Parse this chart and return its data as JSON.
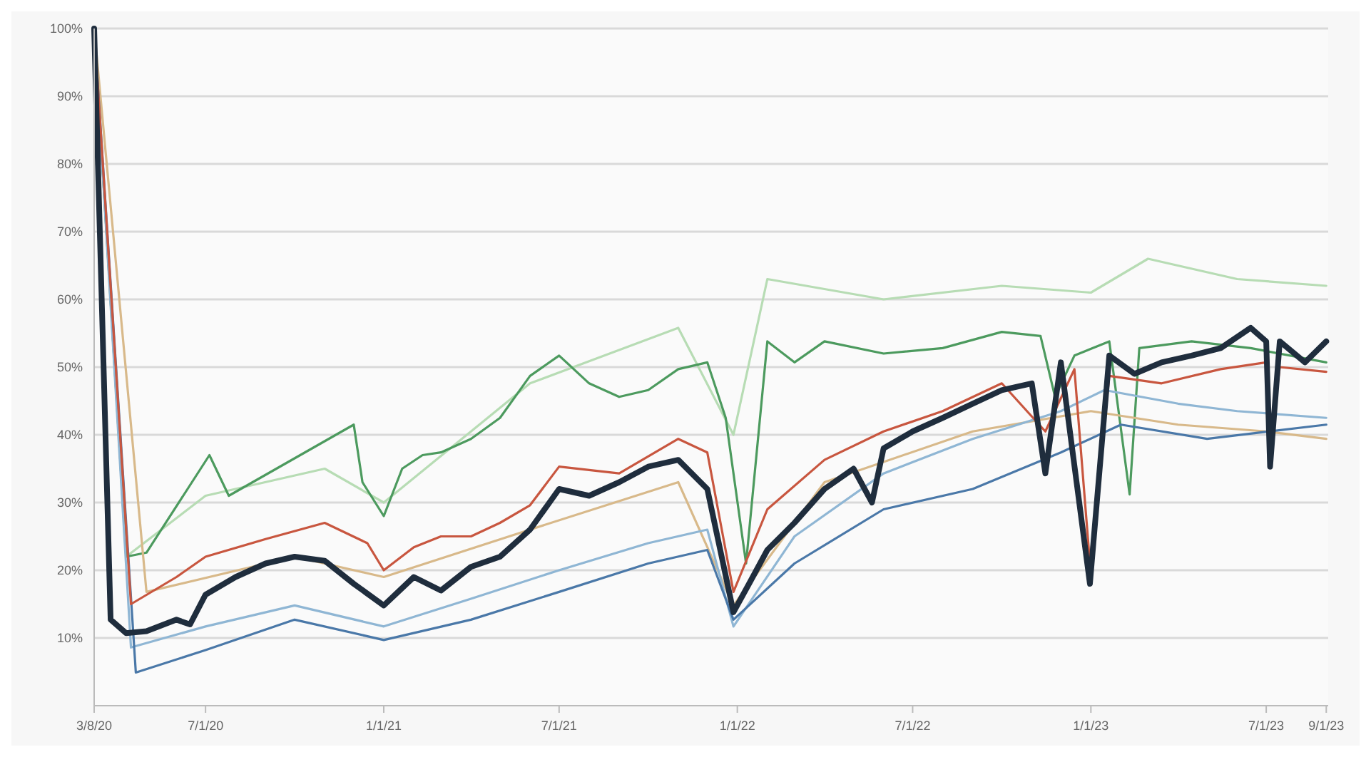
{
  "chart_data": {
    "type": "line",
    "xlim": [
      "2020-03-08",
      "2023-09-03"
    ],
    "xticks": [
      {
        "value": "2020-03-08",
        "label": "3/8/20"
      },
      {
        "value": "2020-07-01",
        "label": "7/1/20"
      },
      {
        "value": "2021-01-01",
        "label": "1/1/21"
      },
      {
        "value": "2021-07-01",
        "label": "7/1/21"
      },
      {
        "value": "2022-01-01",
        "label": "1/1/22"
      },
      {
        "value": "2022-07-01",
        "label": "7/1/22"
      },
      {
        "value": "2023-01-01",
        "label": "1/1/23"
      },
      {
        "value": "2023-07-01",
        "label": "7/1/23"
      },
      {
        "value": "2023-09-01",
        "label": "9/1/23"
      }
    ],
    "ylim": [
      0,
      100
    ],
    "yticks": [
      {
        "value": 10,
        "label": "10%"
      },
      {
        "value": 20,
        "label": "20%"
      },
      {
        "value": 30,
        "label": "30%"
      },
      {
        "value": 40,
        "label": "40%"
      },
      {
        "value": 50,
        "label": "50%"
      },
      {
        "value": 60,
        "label": "60%"
      },
      {
        "value": 70,
        "label": "70%"
      },
      {
        "value": 80,
        "label": "80%"
      },
      {
        "value": 90,
        "label": "90%"
      },
      {
        "value": 100,
        "label": "100%"
      }
    ],
    "grid": "y",
    "marker": "none",
    "line_style": "solid",
    "series": [
      {
        "color": "#b7dcb4",
        "x": [
          "2020-03-08",
          "2020-04-10",
          "2020-07-01",
          "2020-11-01",
          "2021-01-01",
          "2021-06-01",
          "2021-11-01",
          "2021-12-28",
          "2022-02-01",
          "2022-06-01",
          "2022-10-01",
          "2023-01-01",
          "2023-03-01",
          "2023-06-01",
          "2023-09-01"
        ],
        "values": [
          100,
          22,
          31,
          35,
          30,
          47.6,
          55.8,
          40,
          63,
          60,
          62,
          61,
          66,
          63,
          62
        ]
      },
      {
        "color": "#4c9a5e",
        "x": [
          "2020-03-08",
          "2020-04-10",
          "2020-05-01",
          "2020-07-05",
          "2020-07-25",
          "2020-12-01",
          "2020-12-10",
          "2021-01-01",
          "2021-01-20",
          "2021-02-10",
          "2021-03-01",
          "2021-04-01",
          "2021-05-01",
          "2021-06-01",
          "2021-07-01",
          "2021-08-01",
          "2021-09-01",
          "2021-10-01",
          "2021-11-01",
          "2021-12-01",
          "2021-12-20",
          "2022-01-10",
          "2022-02-01",
          "2022-03-01",
          "2022-04-01",
          "2022-06-01",
          "2022-08-01",
          "2022-10-01",
          "2022-11-10",
          "2022-11-25",
          "2022-12-15",
          "2023-01-20",
          "2023-02-10",
          "2023-02-20",
          "2023-04-15",
          "2023-06-15",
          "2023-09-01"
        ],
        "values": [
          100,
          22,
          22.6,
          37,
          31,
          41.5,
          33,
          28,
          35,
          37,
          37.4,
          39.4,
          42.5,
          48.7,
          51.7,
          47.6,
          45.6,
          46.6,
          49.7,
          50.7,
          42.5,
          21,
          53.8,
          50.7,
          53.8,
          52,
          52.8,
          55.2,
          54.6,
          45.6,
          51.7,
          53.8,
          31.2,
          52.8,
          53.8,
          52.8,
          50.7
        ]
      },
      {
        "color": "#d8b98a",
        "x": [
          "2020-03-08",
          "2020-05-01",
          "2020-10-01",
          "2021-01-01",
          "2021-06-01",
          "2021-11-01",
          "2021-12-28",
          "2022-04-01",
          "2022-09-01",
          "2023-01-01",
          "2023-04-01",
          "2023-07-01",
          "2023-09-01"
        ],
        "values": [
          100,
          16.8,
          22,
          19,
          26,
          33,
          14.8,
          33,
          40.5,
          43.5,
          41.5,
          40.5,
          39.4
        ]
      },
      {
        "color": "#8fb6d4",
        "x": [
          "2020-03-08",
          "2020-04-15",
          "2020-07-01",
          "2020-10-01",
          "2021-01-01",
          "2021-04-01",
          "2021-07-01",
          "2021-10-01",
          "2021-12-01",
          "2021-12-28",
          "2022-03-01",
          "2022-06-01",
          "2022-09-01",
          "2022-12-01",
          "2023-01-15",
          "2023-04-01",
          "2023-06-01",
          "2023-09-01"
        ],
        "values": [
          100,
          8.6,
          11.7,
          14.8,
          11.7,
          15.8,
          20,
          24,
          26,
          11.7,
          25,
          34.3,
          39.4,
          43.5,
          46.6,
          44.6,
          43.5,
          42.5
        ]
      },
      {
        "color": "#4a78a8",
        "x": [
          "2020-03-08",
          "2020-04-20",
          "2020-07-01",
          "2020-10-01",
          "2021-01-01",
          "2021-04-01",
          "2021-07-01",
          "2021-10-01",
          "2021-12-01",
          "2021-12-28",
          "2022-03-01",
          "2022-06-01",
          "2022-09-01",
          "2022-12-01",
          "2023-02-01",
          "2023-05-01",
          "2023-09-01"
        ],
        "values": [
          100,
          4.9,
          8.2,
          12.7,
          9.7,
          12.7,
          16.8,
          21,
          23,
          12.7,
          21,
          29,
          32,
          37.4,
          41.5,
          39.4,
          41.5
        ]
      },
      {
        "color": "#c8563f",
        "x": [
          "2020-03-08",
          "2020-04-15",
          "2020-06-01",
          "2020-07-01",
          "2020-09-01",
          "2020-11-01",
          "2020-12-15",
          "2021-01-01",
          "2021-02-01",
          "2021-03-01",
          "2021-04-01",
          "2021-05-01",
          "2021-06-01",
          "2021-07-01",
          "2021-09-01",
          "2021-11-01",
          "2021-12-01",
          "2021-12-28",
          "2022-02-01",
          "2022-04-01",
          "2022-06-01",
          "2022-08-01",
          "2022-10-01",
          "2022-11-15",
          "2022-12-15",
          "2022-12-31",
          "2023-01-20",
          "2023-03-15",
          "2023-05-15",
          "2023-07-01",
          "2023-07-05",
          "2023-07-15",
          "2023-09-01"
        ],
        "values": [
          100,
          15,
          19,
          22,
          24.6,
          27,
          24,
          20,
          23.4,
          25,
          25,
          27,
          29.6,
          35.3,
          34.3,
          39.4,
          37.4,
          16.8,
          29,
          36.3,
          40.5,
          43.5,
          47.6,
          40.5,
          49.7,
          21,
          48.7,
          47.6,
          49.7,
          50.7,
          38.4,
          50,
          49.3
        ]
      },
      {
        "color": "#1f2d3d",
        "x": [
          "2020-03-08",
          "2020-03-25",
          "2020-04-10",
          "2020-05-01",
          "2020-06-01",
          "2020-06-15",
          "2020-07-01",
          "2020-08-01",
          "2020-09-01",
          "2020-10-01",
          "2020-11-01",
          "2020-12-01",
          "2021-01-01",
          "2021-02-01",
          "2021-03-01",
          "2021-04-01",
          "2021-05-01",
          "2021-06-01",
          "2021-07-01",
          "2021-08-01",
          "2021-09-01",
          "2021-10-01",
          "2021-11-01",
          "2021-12-01",
          "2021-12-28",
          "2022-01-15",
          "2022-02-01",
          "2022-03-01",
          "2022-04-01",
          "2022-05-01",
          "2022-05-20",
          "2022-06-01",
          "2022-07-01",
          "2022-08-01",
          "2022-09-01",
          "2022-10-01",
          "2022-11-01",
          "2022-11-15",
          "2022-12-01",
          "2022-12-31",
          "2023-01-20",
          "2023-02-15",
          "2023-03-15",
          "2023-04-15",
          "2023-05-15",
          "2023-06-15",
          "2023-07-01",
          "2023-07-05",
          "2023-07-15",
          "2023-08-10",
          "2023-09-01"
        ],
        "values": [
          100,
          12.7,
          10.7,
          11,
          12.7,
          12,
          16.4,
          19,
          21,
          22,
          21.4,
          18,
          14.8,
          19,
          17,
          20.5,
          22,
          26,
          32,
          31,
          33,
          35.3,
          36.3,
          32,
          13.8,
          18.5,
          23,
          27,
          32,
          35,
          30,
          38,
          40.5,
          42.5,
          44.6,
          46.6,
          47.6,
          34.3,
          50.7,
          18,
          51.7,
          49,
          50.7,
          51.7,
          52.8,
          55.8,
          53.8,
          35.3,
          53.8,
          50.7,
          53.8
        ]
      }
    ]
  }
}
